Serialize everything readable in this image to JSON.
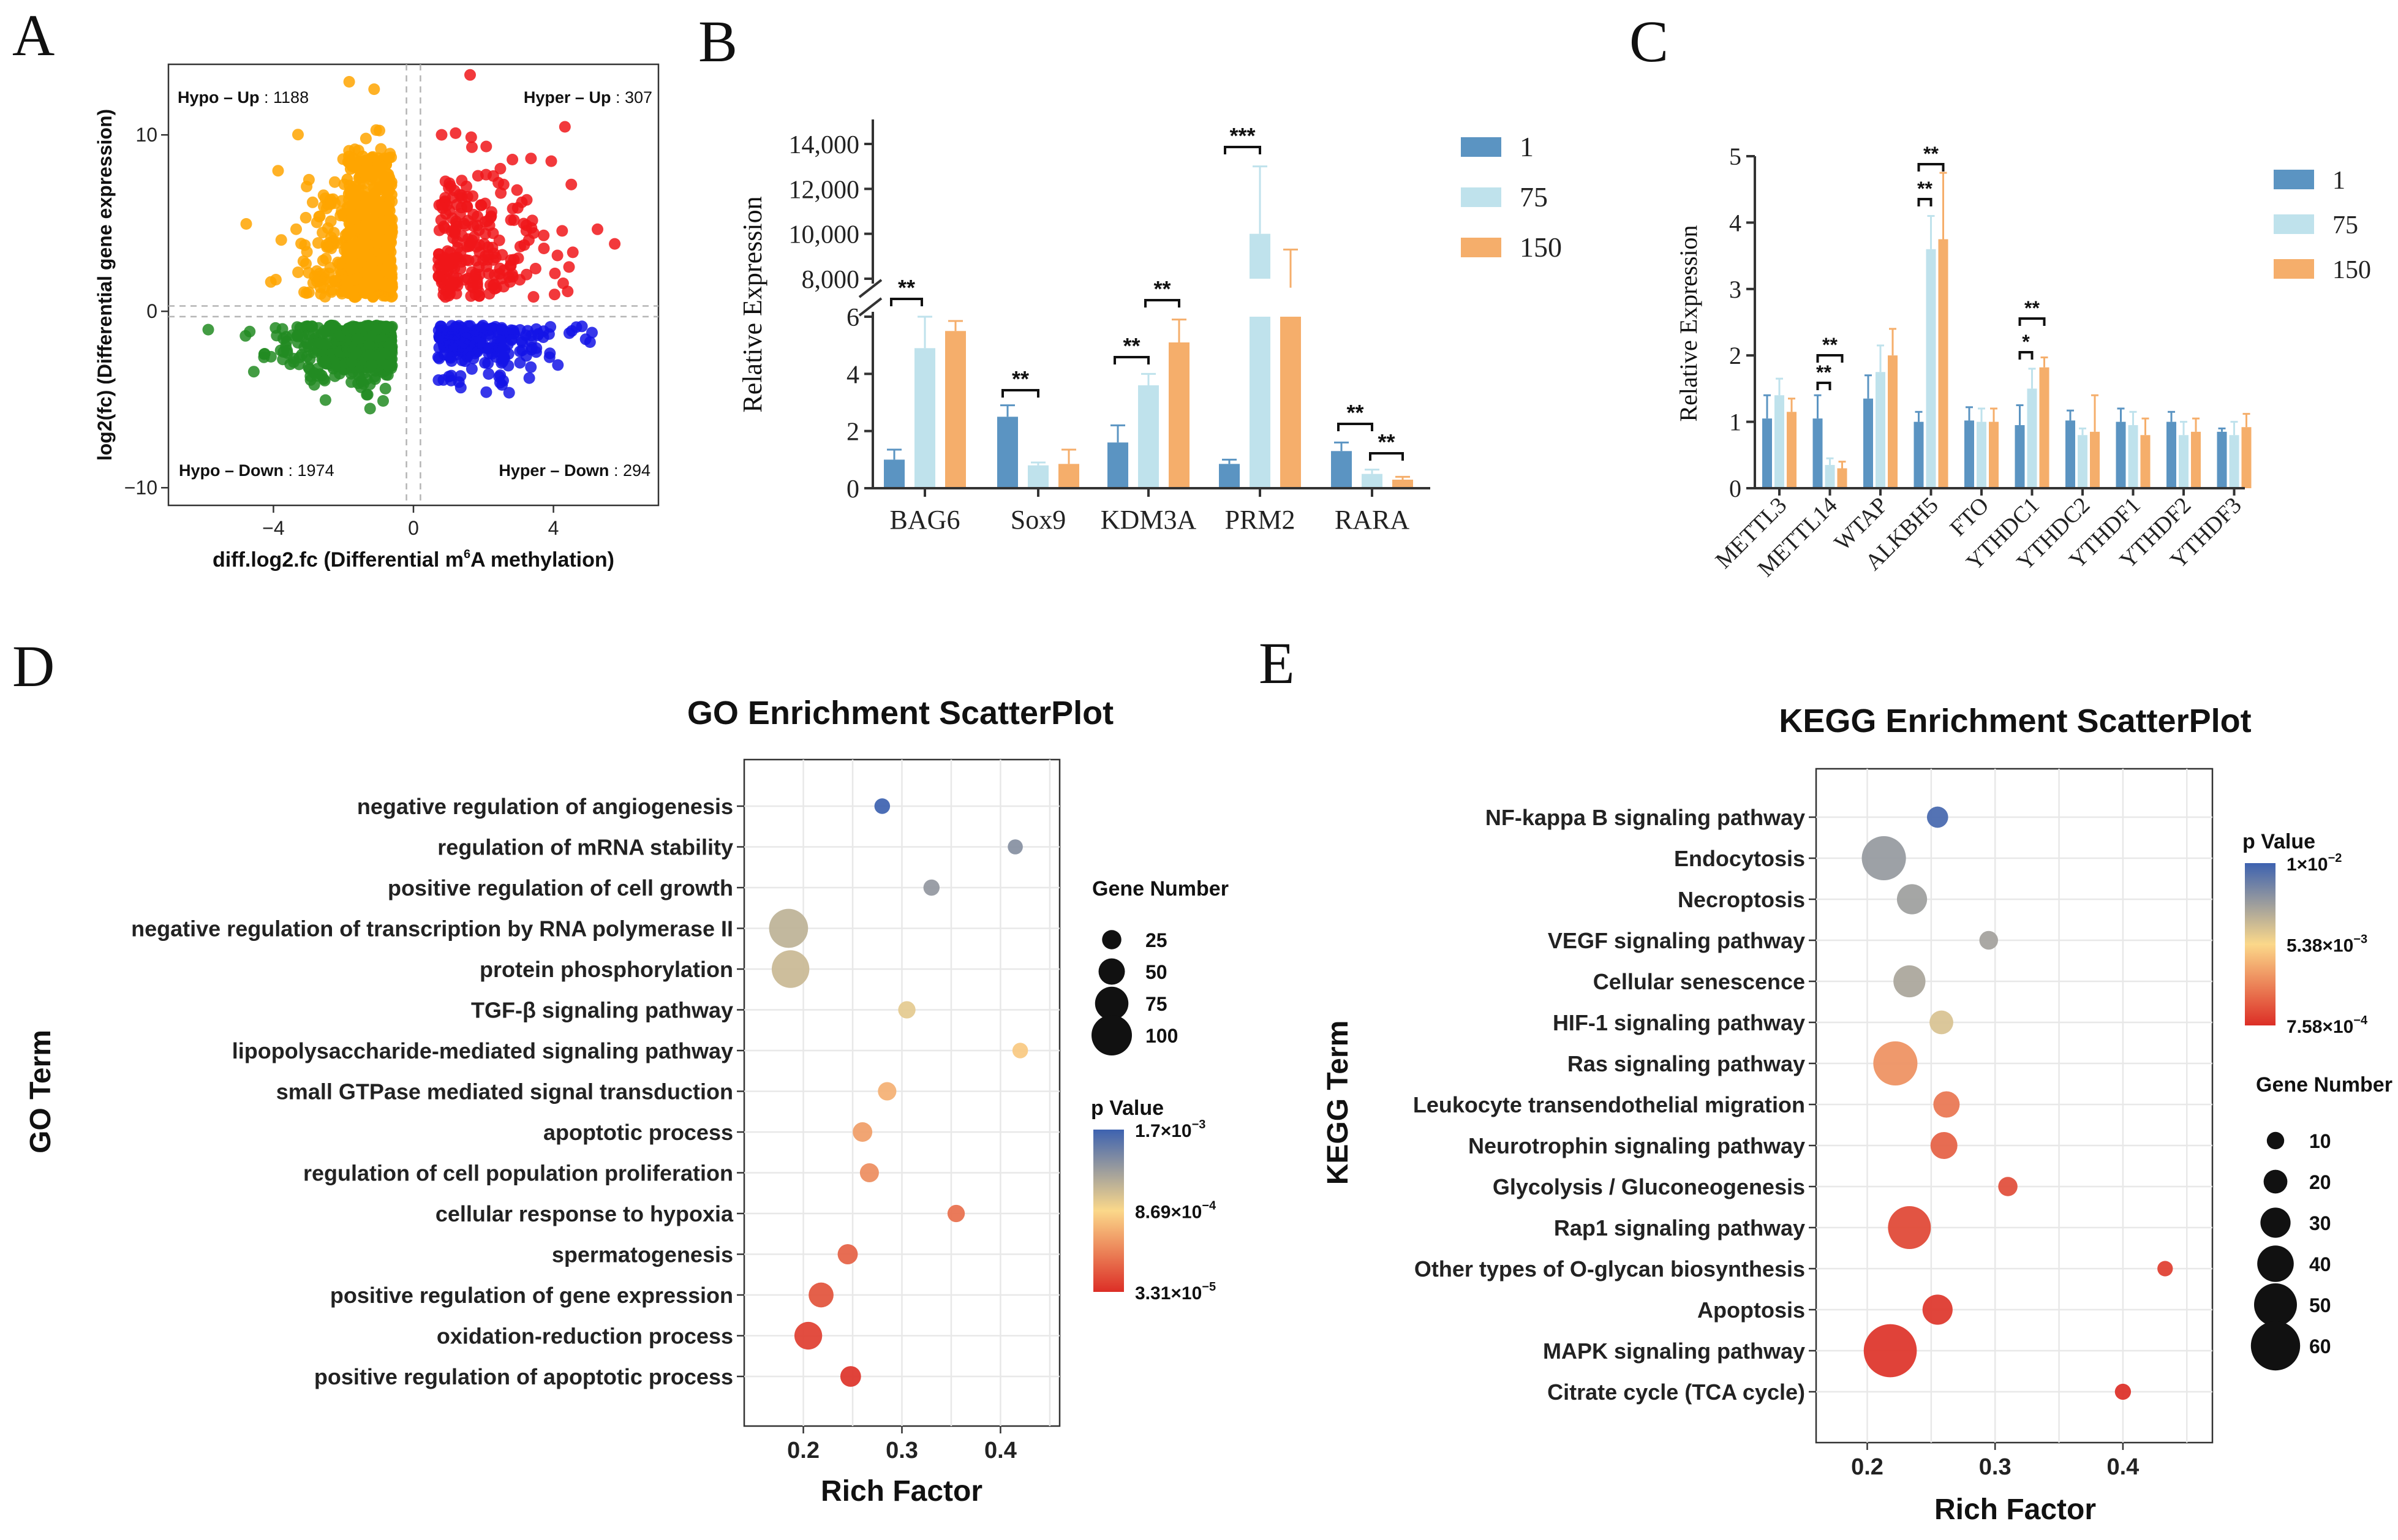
{
  "panels": {
    "A": {
      "label": "A"
    },
    "B": {
      "label": "B"
    },
    "C": {
      "label": "C"
    },
    "D": {
      "label": "D"
    },
    "E": {
      "label": "E"
    }
  },
  "colors": {
    "hypo_up": "#FFA500",
    "hyper_up": "#F0161A",
    "hypo_down": "#228B22",
    "hyper_down": "#1414E6",
    "bar_1": "#5B94C2",
    "bar_75": "#BFE2EC",
    "bar_150": "#F5AE6B",
    "p_high": "#3D62B0",
    "p_mid": "#FBD88A",
    "p_low": "#DC2E26"
  },
  "chart_data": [
    {
      "id": "A",
      "type": "scatter",
      "title": "",
      "xlabel": "diff.log2.fc (Differential m",
      "xlabel_sup": "6",
      "xlabel_end": "A  methylation)",
      "ylabel": "log2(fc) (Differential gene expression)",
      "xlim": [
        -7,
        7
      ],
      "ylim": [
        -11,
        14
      ],
      "xticks": [
        -4,
        0,
        4
      ],
      "xtick_labels": [
        "−4",
        "0",
        "4"
      ],
      "yticks": [
        -10,
        0,
        10
      ],
      "ytick_labels": [
        "−10",
        "0",
        "10"
      ],
      "quadrants": [
        {
          "name": "Hypo",
          "dir": "Up",
          "count": "1188",
          "text_prefix": "Hypo – Up",
          "text_count": " : 1188"
        },
        {
          "name": "Hyper",
          "dir": "Up",
          "count": "307",
          "text_prefix": "Hyper – Up",
          "text_count": " : 307"
        },
        {
          "name": "Hypo",
          "dir": "Down",
          "count": "1974",
          "text_prefix": "Hypo – Down",
          "text_count": " : 1974"
        },
        {
          "name": "Hyper",
          "dir": "Down",
          "count": "294",
          "text_prefix": "Hyper – Down",
          "text_count": " : 294"
        }
      ]
    },
    {
      "id": "B",
      "type": "bar",
      "ylabel": "Relative Expression",
      "categories": [
        "BAG6",
        "Sox9",
        "KDM3A",
        "PRM2",
        "RARA"
      ],
      "series": [
        {
          "name": "1",
          "values": [
            1.0,
            2.5,
            1.6,
            0.85,
            1.3
          ],
          "errors": [
            0.35,
            0.4,
            0.6,
            0.15,
            0.3
          ]
        },
        {
          "name": "75",
          "values": [
            4.9,
            0.8,
            3.6,
            10000,
            0.5
          ],
          "errors": [
            1.1,
            0.1,
            0.4,
            3000,
            0.15
          ]
        },
        {
          "name": "150",
          "values": [
            5.5,
            0.85,
            5.1,
            7600,
            0.3
          ],
          "errors": [
            0.35,
            0.5,
            0.8,
            1700,
            0.1
          ]
        }
      ],
      "ylim_lower": [
        0,
        6
      ],
      "ylim_upper": [
        8000,
        14000
      ],
      "yticks_lower": [
        "0",
        "2",
        "4",
        "6"
      ],
      "yticks_upper": [
        "8,000",
        "10,000",
        "12,000",
        "14,000"
      ],
      "significance": [
        {
          "category": "BAG6",
          "label": "**"
        },
        {
          "category": "Sox9",
          "label": "**"
        },
        {
          "category": "KDM3A",
          "label": "**"
        },
        {
          "category": "KDM3A",
          "label": "**"
        },
        {
          "category": "PRM2",
          "label": "***"
        },
        {
          "category": "RARA",
          "label": "**"
        },
        {
          "category": "RARA",
          "label": "**"
        }
      ]
    },
    {
      "id": "C",
      "type": "bar",
      "ylabel": "Relative Expression",
      "categories": [
        "METTL3",
        "METTL14",
        "WTAP",
        "ALKBH5",
        "FTO",
        "YTHDC1",
        "YTHDC2",
        "YTHDF1",
        "YTHDF2",
        "YTHDF3"
      ],
      "series": [
        {
          "name": "1",
          "values": [
            1.05,
            1.05,
            1.35,
            1.0,
            1.02,
            0.95,
            1.02,
            1.0,
            1.0,
            0.85
          ],
          "errors": [
            0.35,
            0.35,
            0.35,
            0.15,
            0.2,
            0.3,
            0.15,
            0.2,
            0.15,
            0.05
          ]
        },
        {
          "name": "75",
          "values": [
            1.4,
            0.35,
            1.75,
            3.6,
            1.0,
            1.5,
            0.8,
            0.95,
            0.8,
            0.8
          ],
          "errors": [
            0.25,
            0.1,
            0.4,
            0.5,
            0.2,
            0.3,
            0.1,
            0.2,
            0.2,
            0.2
          ]
        },
        {
          "name": "150",
          "values": [
            1.15,
            0.3,
            2.0,
            3.75,
            1.0,
            1.82,
            0.85,
            0.8,
            0.85,
            0.92
          ],
          "errors": [
            0.2,
            0.1,
            0.4,
            1.0,
            0.2,
            0.15,
            0.55,
            0.25,
            0.2,
            0.2
          ]
        }
      ],
      "ylim": [
        0,
        5
      ],
      "yticks": [
        "0",
        "1",
        "2",
        "3",
        "4",
        "5"
      ],
      "significance": [
        {
          "category": "METTL14",
          "label": "**"
        },
        {
          "category": "METTL14",
          "label": "**"
        },
        {
          "category": "ALKBH5",
          "label": "**"
        },
        {
          "category": "ALKBH5",
          "label": "**"
        },
        {
          "category": "YTHDC1",
          "label": "*"
        },
        {
          "category": "YTHDC1",
          "label": "**"
        }
      ]
    },
    {
      "id": "D",
      "type": "scatter",
      "title": "GO Enrichment ScatterPlot",
      "xlabel": "Rich Factor",
      "ylabel": "GO Term",
      "xlim": [
        0.14,
        0.46
      ],
      "xticks": [
        "0.2",
        "0.3",
        "0.4"
      ],
      "terms": [
        {
          "name": "negative regulation of angiogenesis",
          "rich": 0.28,
          "genes": 12,
          "p": 0.0017
        },
        {
          "name": "regulation of mRNA stability",
          "rich": 0.415,
          "genes": 10,
          "p": 0.0008
        },
        {
          "name": "positive regulation of cell growth",
          "rich": 0.33,
          "genes": 14,
          "p": 0.0007
        },
        {
          "name": "negative regulation of transcription by RNA polymerase II",
          "rich": 0.185,
          "genes": 95,
          "p": 0.00045
        },
        {
          "name": "protein phosphorylation",
          "rich": 0.187,
          "genes": 90,
          "p": 0.0004
        },
        {
          "name": "TGF-β signaling pathway",
          "rich": 0.305,
          "genes": 18,
          "p": 0.0003
        },
        {
          "name": "lipopolysaccharide-mediated signaling pathway",
          "rich": 0.42,
          "genes": 12,
          "p": 0.0002
        },
        {
          "name": "small GTPase mediated signal transduction",
          "rich": 0.285,
          "genes": 22,
          "p": 0.00015
        },
        {
          "name": "apoptotic process",
          "rich": 0.26,
          "genes": 26,
          "p": 0.00012
        },
        {
          "name": "regulation of cell population proliferation",
          "rich": 0.267,
          "genes": 24,
          "p": 0.0001
        },
        {
          "name": "cellular response to hypoxia",
          "rich": 0.355,
          "genes": 18,
          "p": 7e-05
        },
        {
          "name": "spermatogenesis",
          "rich": 0.245,
          "genes": 28,
          "p": 6e-05
        },
        {
          "name": "positive regulation of gene expression",
          "rich": 0.218,
          "genes": 45,
          "p": 5e-05
        },
        {
          "name": "oxidation-reduction process",
          "rich": 0.205,
          "genes": 55,
          "p": 4e-05
        },
        {
          "name": "positive regulation of apoptotic process",
          "rich": 0.248,
          "genes": 30,
          "p": 3.5e-05
        }
      ],
      "size_legend": {
        "title": "Gene Number",
        "values": [
          25,
          50,
          75,
          100
        ]
      },
      "color_legend": {
        "title": "p Value",
        "max": 0.0017,
        "min": 3.31e-05,
        "labels": [
          "1.7×10",
          "8.69×10",
          "3.31×10"
        ],
        "exps": [
          "−3",
          "−4",
          "−5"
        ]
      }
    },
    {
      "id": "E",
      "type": "scatter",
      "title": "KEGG Enrichment ScatterPlot",
      "xlabel": "Rich Factor",
      "ylabel": "KEGG Term",
      "xlim": [
        0.16,
        0.47
      ],
      "xticks": [
        "0.2",
        "0.3",
        "0.4"
      ],
      "terms": [
        {
          "name": "NF-kappa B signaling pathway",
          "rich": 0.255,
          "genes": 16,
          "p": 0.0095
        },
        {
          "name": "Endocytosis",
          "rich": 0.213,
          "genes": 52,
          "p": 0.0055
        },
        {
          "name": "Necroptosis",
          "rich": 0.235,
          "genes": 30,
          "p": 0.0052
        },
        {
          "name": "VEGF signaling pathway",
          "rich": 0.295,
          "genes": 12,
          "p": 0.005
        },
        {
          "name": "Cellular senescence",
          "rich": 0.233,
          "genes": 33,
          "p": 0.0048
        },
        {
          "name": "HIF-1 signaling pathway",
          "rich": 0.258,
          "genes": 20,
          "p": 0.0035
        },
        {
          "name": "Ras signaling pathway",
          "rich": 0.222,
          "genes": 52,
          "p": 0.0016
        },
        {
          "name": "Leukocyte transendothelial migration",
          "rich": 0.262,
          "genes": 24,
          "p": 0.0013
        },
        {
          "name": "Neurotrophin signaling pathway",
          "rich": 0.26,
          "genes": 25,
          "p": 0.0011
        },
        {
          "name": "Glycolysis / Gluconeogenesis",
          "rich": 0.31,
          "genes": 13,
          "p": 0.00095
        },
        {
          "name": "Rap1 signaling pathway",
          "rich": 0.233,
          "genes": 50,
          "p": 0.0009
        },
        {
          "name": "Other types of O-glycan biosynthesis",
          "rich": 0.433,
          "genes": 7,
          "p": 0.00085
        },
        {
          "name": "Apoptosis",
          "rich": 0.255,
          "genes": 30,
          "p": 0.0008
        },
        {
          "name": "MAPK signaling pathway",
          "rich": 0.218,
          "genes": 66,
          "p": 0.00078
        },
        {
          "name": "Citrate cycle (TCA cycle)",
          "rich": 0.4,
          "genes": 8,
          "p": 0.00076
        }
      ],
      "size_legend": {
        "title": "Gene Number",
        "values": [
          10,
          20,
          30,
          40,
          50,
          60
        ]
      },
      "color_legend": {
        "title": "p Value",
        "max": 0.01,
        "min": 0.000758,
        "labels": [
          "1×10",
          "5.38×10",
          "7.58×10"
        ],
        "exps": [
          "−2",
          "−3",
          "−4"
        ]
      }
    }
  ]
}
